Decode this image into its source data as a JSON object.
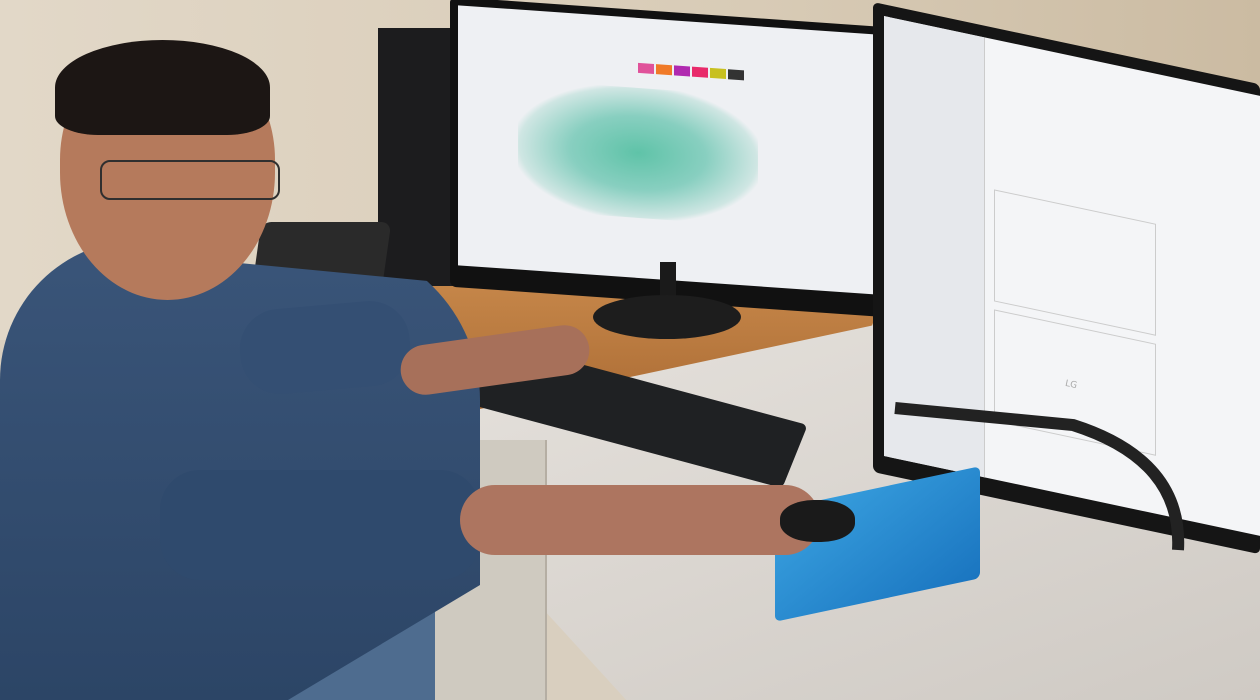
{
  "scene": {
    "description_colors": {
      "wall": "#e2d8c8",
      "desk_wood": "#b8773c",
      "desk_white": "#dcd8d2",
      "sweater": "#344f73",
      "mousepad": "#2a8ad0"
    },
    "monitor_brand": "LG",
    "swatch_colors": [
      "#e0529a",
      "#f07a28",
      "#b02ab0",
      "#e82a6a",
      "#c8c020",
      "#333333"
    ]
  }
}
